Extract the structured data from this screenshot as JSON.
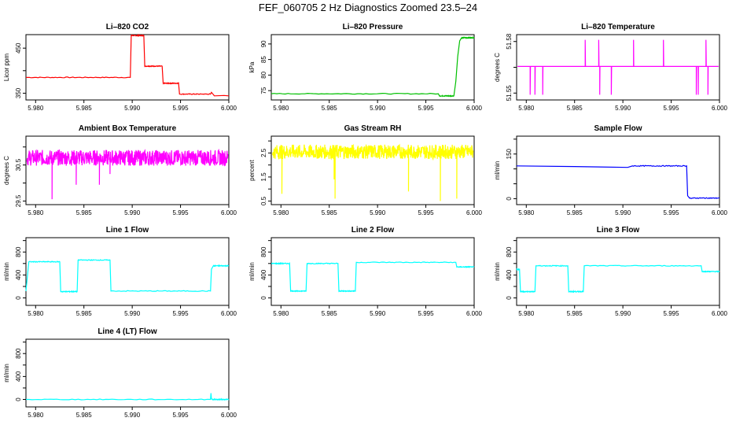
{
  "page_title": "FEF_060705  2 Hz Diagnostics Zoomed 23.5–24",
  "colors": {
    "red": "#ff0000",
    "green": "#00c000",
    "magenta": "#ff00ff",
    "yellow": "#ffff00",
    "blue": "#0000ff",
    "cyan": "#00ffff"
  },
  "chart_data": [
    {
      "type": "line",
      "title": "Li–820 CO2",
      "ylabel": "Licor ppm",
      "color": "#ff0000",
      "xlim": [
        5.979,
        6.0
      ],
      "ylim": [
        335,
        480
      ],
      "yticks": [
        350,
        400,
        450
      ],
      "ytick_labels": [
        "350",
        "",
        "450"
      ],
      "xticks": [
        5.98,
        5.985,
        5.99,
        5.995,
        6.0
      ],
      "xtick_labels": [
        "5.980",
        "5.985",
        "5.990",
        "5.995",
        "6.000"
      ],
      "series": [
        {
          "x": [
            5.979,
            5.9898,
            5.9899,
            5.9912,
            5.9913,
            5.9931,
            5.9932,
            5.9948,
            5.9949,
            5.9981,
            5.9982,
            5.9985,
            5.9995,
            6.0
          ],
          "y": [
            385,
            385,
            478,
            478,
            410,
            410,
            372,
            372,
            348,
            348,
            352,
            344,
            345,
            344
          ]
        }
      ]
    },
    {
      "type": "line",
      "title": "Li–820 Pressure",
      "ylabel": "kPa",
      "color": "#00c000",
      "xlim": [
        5.979,
        6.0
      ],
      "ylim": [
        72,
        93
      ],
      "yticks": [
        75,
        80,
        85,
        90
      ],
      "ytick_labels": [
        "75",
        "80",
        "85",
        "90"
      ],
      "xticks": [
        5.98,
        5.985,
        5.99,
        5.995,
        6.0
      ],
      "xtick_labels": [
        "5.980",
        "5.985",
        "5.990",
        "5.995",
        "6.000"
      ],
      "series": [
        {
          "x": [
            5.979,
            5.9963,
            5.9964,
            5.9979,
            5.9981,
            5.9983,
            5.9985,
            5.9987,
            6.0
          ],
          "y": [
            74,
            74,
            73.3,
            73.3,
            78,
            86,
            91,
            92,
            92
          ]
        }
      ]
    },
    {
      "type": "line",
      "title": "Li–820 Temperature",
      "ylabel": "degrees C",
      "color": "#ff00ff",
      "xlim": [
        5.979,
        6.0
      ],
      "ylim": [
        51.546,
        51.584
      ],
      "yticks": [
        51.55,
        51.565,
        51.58
      ],
      "ytick_labels": [
        "51.55",
        "",
        "51.58"
      ],
      "xticks": [
        5.98,
        5.985,
        5.99,
        5.995,
        6.0
      ],
      "xtick_labels": [
        "5.980",
        "5.985",
        "5.990",
        "5.995",
        "6.000"
      ],
      "baseline": 51.5655,
      "spikes_up": [
        5.9861,
        5.9875,
        5.9911,
        5.9942,
        5.9986
      ],
      "spikes_down": [
        5.9804,
        5.9809,
        5.9817,
        5.9876,
        5.9888,
        5.9976,
        5.9978,
        5.9988
      ],
      "spike_up_value": 51.581,
      "spike_down_value": 51.549
    },
    {
      "type": "line",
      "title": "Ambient Box Temperature",
      "ylabel": "degrees C",
      "color": "#ff00ff",
      "xlim": [
        5.979,
        6.0
      ],
      "ylim": [
        29.4,
        31.3
      ],
      "yticks": [
        29.5,
        30.0,
        30.5,
        31.0
      ],
      "ytick_labels": [
        "29.5",
        "",
        "30.5",
        ""
      ],
      "xticks": [
        5.98,
        5.985,
        5.99,
        5.995,
        6.0
      ],
      "xtick_labels": [
        "5.980",
        "5.985",
        "5.990",
        "5.995",
        "6.000"
      ],
      "noise_mean": 30.7,
      "noise_amp": 0.22,
      "spike_x": [
        5.9817,
        5.9842,
        5.9866,
        5.9877
      ],
      "spike_y": [
        29.55,
        29.95,
        29.95,
        30.25
      ]
    },
    {
      "type": "line",
      "title": "Gas Stream RH",
      "ylabel": "percent",
      "color": "#ffff00",
      "xlim": [
        5.979,
        6.0
      ],
      "ylim": [
        0.35,
        3.2
      ],
      "yticks": [
        0.5,
        1.0,
        1.5,
        2.0,
        2.5,
        3.0
      ],
      "ytick_labels": [
        "0.5",
        "",
        "1.5",
        "",
        "2.5",
        ""
      ],
      "xticks": [
        5.98,
        5.985,
        5.99,
        5.995,
        6.0
      ],
      "xtick_labels": [
        "5.980",
        "5.985",
        "5.990",
        "5.995",
        "6.000"
      ],
      "noise_mean": 2.55,
      "noise_amp": 0.3,
      "spike_x": [
        5.9801,
        5.9855,
        5.9856,
        5.9932,
        5.9965,
        5.9982
      ],
      "spike_y": [
        0.8,
        1.4,
        0.6,
        0.9,
        0.5,
        0.6
      ]
    },
    {
      "type": "line",
      "title": "Sample Flow",
      "ylabel": "ml/min",
      "color": "#0000ff",
      "xlim": [
        5.979,
        6.0
      ],
      "ylim": [
        -20,
        210
      ],
      "yticks": [
        0,
        50,
        100,
        150,
        200
      ],
      "ytick_labels": [
        "0",
        "",
        "",
        "150",
        ""
      ],
      "xticks": [
        5.98,
        5.985,
        5.99,
        5.995,
        6.0
      ],
      "xtick_labels": [
        "5.980",
        "5.985",
        "5.990",
        "5.995",
        "6.000"
      ],
      "series": [
        {
          "x": [
            5.979,
            5.985,
            5.9905,
            5.991,
            5.9966,
            5.9967,
            5.9969,
            6.0
          ],
          "y": [
            110,
            108,
            105,
            110,
            110,
            10,
            2,
            2
          ]
        }
      ]
    },
    {
      "type": "line",
      "title": "Line 1 Flow",
      "ylabel": "ml/min",
      "color": "#00ffff",
      "xlim": [
        5.979,
        6.0
      ],
      "ylim": [
        -130,
        1050
      ],
      "yticks": [
        0,
        200,
        400,
        600,
        800,
        1000
      ],
      "ytick_labels": [
        "0",
        "",
        "400",
        "",
        "800",
        ""
      ],
      "xticks": [
        5.98,
        5.985,
        5.99,
        5.995,
        6.0
      ],
      "xtick_labels": [
        "5.980",
        "5.985",
        "5.990",
        "5.995",
        "6.000"
      ],
      "series": [
        {
          "x": [
            5.979,
            5.9793,
            5.9825,
            5.9826,
            5.9843,
            5.9844,
            5.9877,
            5.9878,
            5.9981,
            5.9982,
            5.9984,
            6.0
          ],
          "y": [
            120,
            630,
            630,
            110,
            110,
            660,
            660,
            120,
            120,
            500,
            560,
            560
          ]
        }
      ]
    },
    {
      "type": "line",
      "title": "Line 2 Flow",
      "ylabel": "ml/min",
      "color": "#00ffff",
      "xlim": [
        5.979,
        6.0
      ],
      "ylim": [
        -130,
        1050
      ],
      "yticks": [
        0,
        200,
        400,
        600,
        800,
        1000
      ],
      "ytick_labels": [
        "0",
        "",
        "400",
        "",
        "800",
        ""
      ],
      "xticks": [
        5.98,
        5.985,
        5.99,
        5.995,
        6.0
      ],
      "xtick_labels": [
        "5.980",
        "5.985",
        "5.990",
        "5.995",
        "6.000"
      ],
      "series": [
        {
          "x": [
            5.979,
            5.9809,
            5.981,
            5.9826,
            5.9827,
            5.9859,
            5.986,
            5.9877,
            5.9878,
            5.9981,
            5.9982,
            6.0
          ],
          "y": [
            600,
            600,
            120,
            120,
            600,
            600,
            120,
            120,
            620,
            620,
            540,
            540
          ]
        }
      ]
    },
    {
      "type": "line",
      "title": "Line 3 Flow",
      "ylabel": "ml/min",
      "color": "#00ffff",
      "xlim": [
        5.979,
        6.0
      ],
      "ylim": [
        -130,
        1050
      ],
      "yticks": [
        0,
        200,
        400,
        600,
        800,
        1000
      ],
      "ytick_labels": [
        "0",
        "",
        "400",
        "",
        "800",
        ""
      ],
      "xticks": [
        5.98,
        5.985,
        5.99,
        5.995,
        6.0
      ],
      "xtick_labels": [
        "5.980",
        "5.985",
        "5.990",
        "5.995",
        "6.000"
      ],
      "series": [
        {
          "x": [
            5.979,
            5.9793,
            5.9794,
            5.9809,
            5.981,
            5.9843,
            5.9844,
            5.9859,
            5.986,
            5.9981,
            5.9982,
            6.0
          ],
          "y": [
            500,
            500,
            110,
            110,
            560,
            560,
            110,
            110,
            560,
            560,
            460,
            460
          ]
        }
      ]
    },
    {
      "type": "line",
      "title": "Line 4 (LT) Flow",
      "ylabel": "ml/min",
      "color": "#00ffff",
      "xlim": [
        5.979,
        6.0
      ],
      "ylim": [
        -130,
        1050
      ],
      "yticks": [
        0,
        200,
        400,
        600,
        800,
        1000
      ],
      "ytick_labels": [
        "0",
        "",
        "400",
        "",
        "800",
        ""
      ],
      "xticks": [
        5.98,
        5.985,
        5.99,
        5.995,
        6.0
      ],
      "xtick_labels": [
        "5.980",
        "5.985",
        "5.990",
        "5.995",
        "6.000"
      ],
      "series": [
        {
          "x": [
            5.979,
            5.9981,
            5.99815,
            5.9982,
            5.9983,
            6.0
          ],
          "y": [
            0,
            0,
            110,
            10,
            0,
            0
          ]
        }
      ]
    }
  ]
}
